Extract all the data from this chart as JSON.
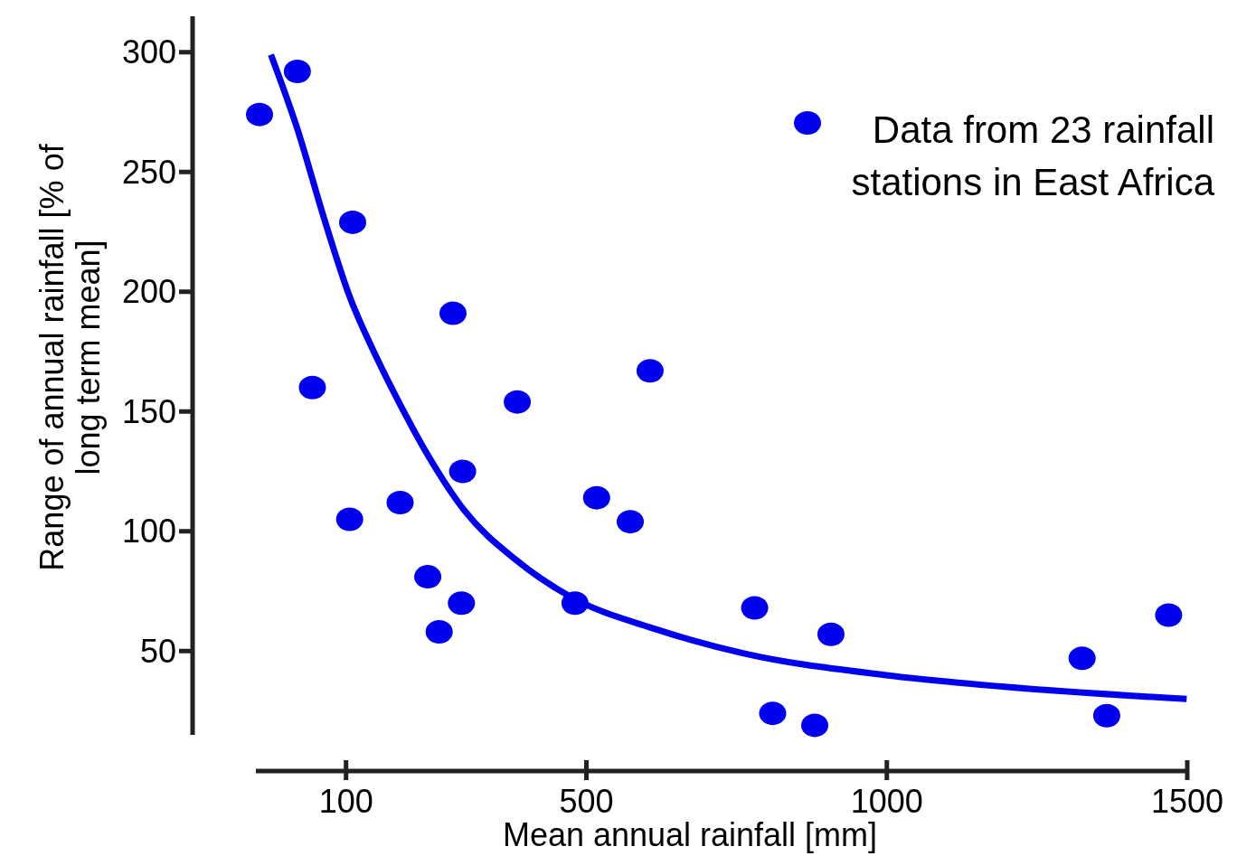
{
  "chart_data": {
    "type": "scatter",
    "xlabel": "Mean annual rainfall [mm]",
    "ylabel": "Range of annual rainfall [% of long term mean]",
    "xlim": [
      -50,
      1500
    ],
    "ylim": [
      15,
      315
    ],
    "xticks": [
      100,
      500,
      1000,
      1500
    ],
    "yticks": [
      50,
      100,
      150,
      200,
      250,
      300
    ],
    "legend": "top right",
    "grid": false,
    "series": [
      {
        "name": "Data from 23 rainfall stations in East Africa",
        "marker": "circle",
        "color": "#0000ee",
        "x": [
          -44,
          19,
          44,
          106,
          111,
          190,
          236,
          255,
          278,
          292,
          294,
          385,
          481,
          517,
          573,
          606,
          780,
          810,
          880,
          907,
          1325,
          1366,
          1469
        ],
        "values": [
          274,
          292,
          160,
          105,
          229,
          112,
          81,
          58,
          191,
          70,
          125,
          154,
          70,
          114,
          104,
          167,
          68,
          24,
          19,
          57,
          47,
          23,
          65
        ]
      },
      {
        "type": "line",
        "line_style": "solid",
        "color": "#0000ee",
        "x": [
          -25,
          19,
          63,
          106,
          150,
          194,
          238,
          296,
          383,
          471,
          617,
          762,
          996,
          1200,
          1499
        ],
        "values": [
          299,
          268,
          231,
          198,
          173,
          151,
          131,
          109,
          88,
          73,
          59,
          49,
          40,
          35,
          30
        ]
      }
    ]
  }
}
